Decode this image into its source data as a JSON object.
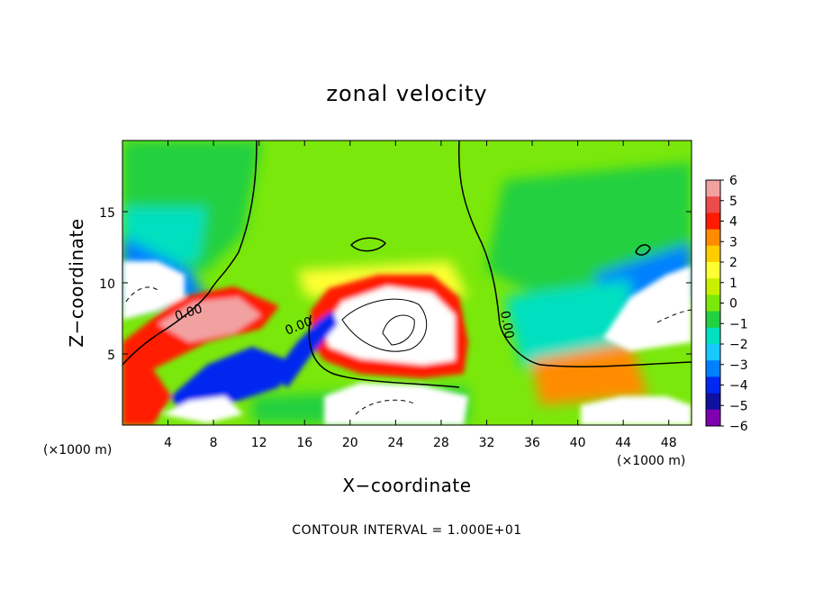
{
  "chart_data": {
    "type": "heatmap",
    "title": "zonal velocity",
    "xlabel": "X−coordinate",
    "ylabel": "Z−coordinate",
    "x_unit_label": "(×1000 m)",
    "x_unit_label_right": "(×1000 m)",
    "xlim": [
      0,
      50
    ],
    "ylim": [
      0,
      20
    ],
    "x_ticks": [
      4,
      8,
      12,
      16,
      20,
      24,
      28,
      32,
      36,
      40,
      44,
      48
    ],
    "y_ticks": [
      5,
      10,
      15
    ],
    "footer": "CONTOUR INTERVAL =  1.000E+01",
    "contour_label": "0.00",
    "colorbar": {
      "range": [
        -6,
        6
      ],
      "levels": [
        6,
        5,
        4,
        3,
        2,
        1,
        0,
        -1,
        -2,
        -3,
        -4,
        -5,
        -6
      ],
      "tick_labels": [
        "6",
        "5",
        "4",
        "3",
        "2",
        "1",
        "0",
        "−1",
        "−2",
        "−3",
        "−4",
        "−5",
        "−6"
      ],
      "colors": [
        "#f2a1a1",
        "#ee4b4b",
        "#ff1a00",
        "#ff8c00",
        "#ffcc00",
        "#ffff33",
        "#c8f000",
        "#7ae80a",
        "#22d040",
        "#00e0c0",
        "#19c8ff",
        "#0080ff",
        "#0028f0",
        "#1010a0",
        "#8000b0"
      ]
    },
    "legend_placement": "right",
    "grid": false
  }
}
